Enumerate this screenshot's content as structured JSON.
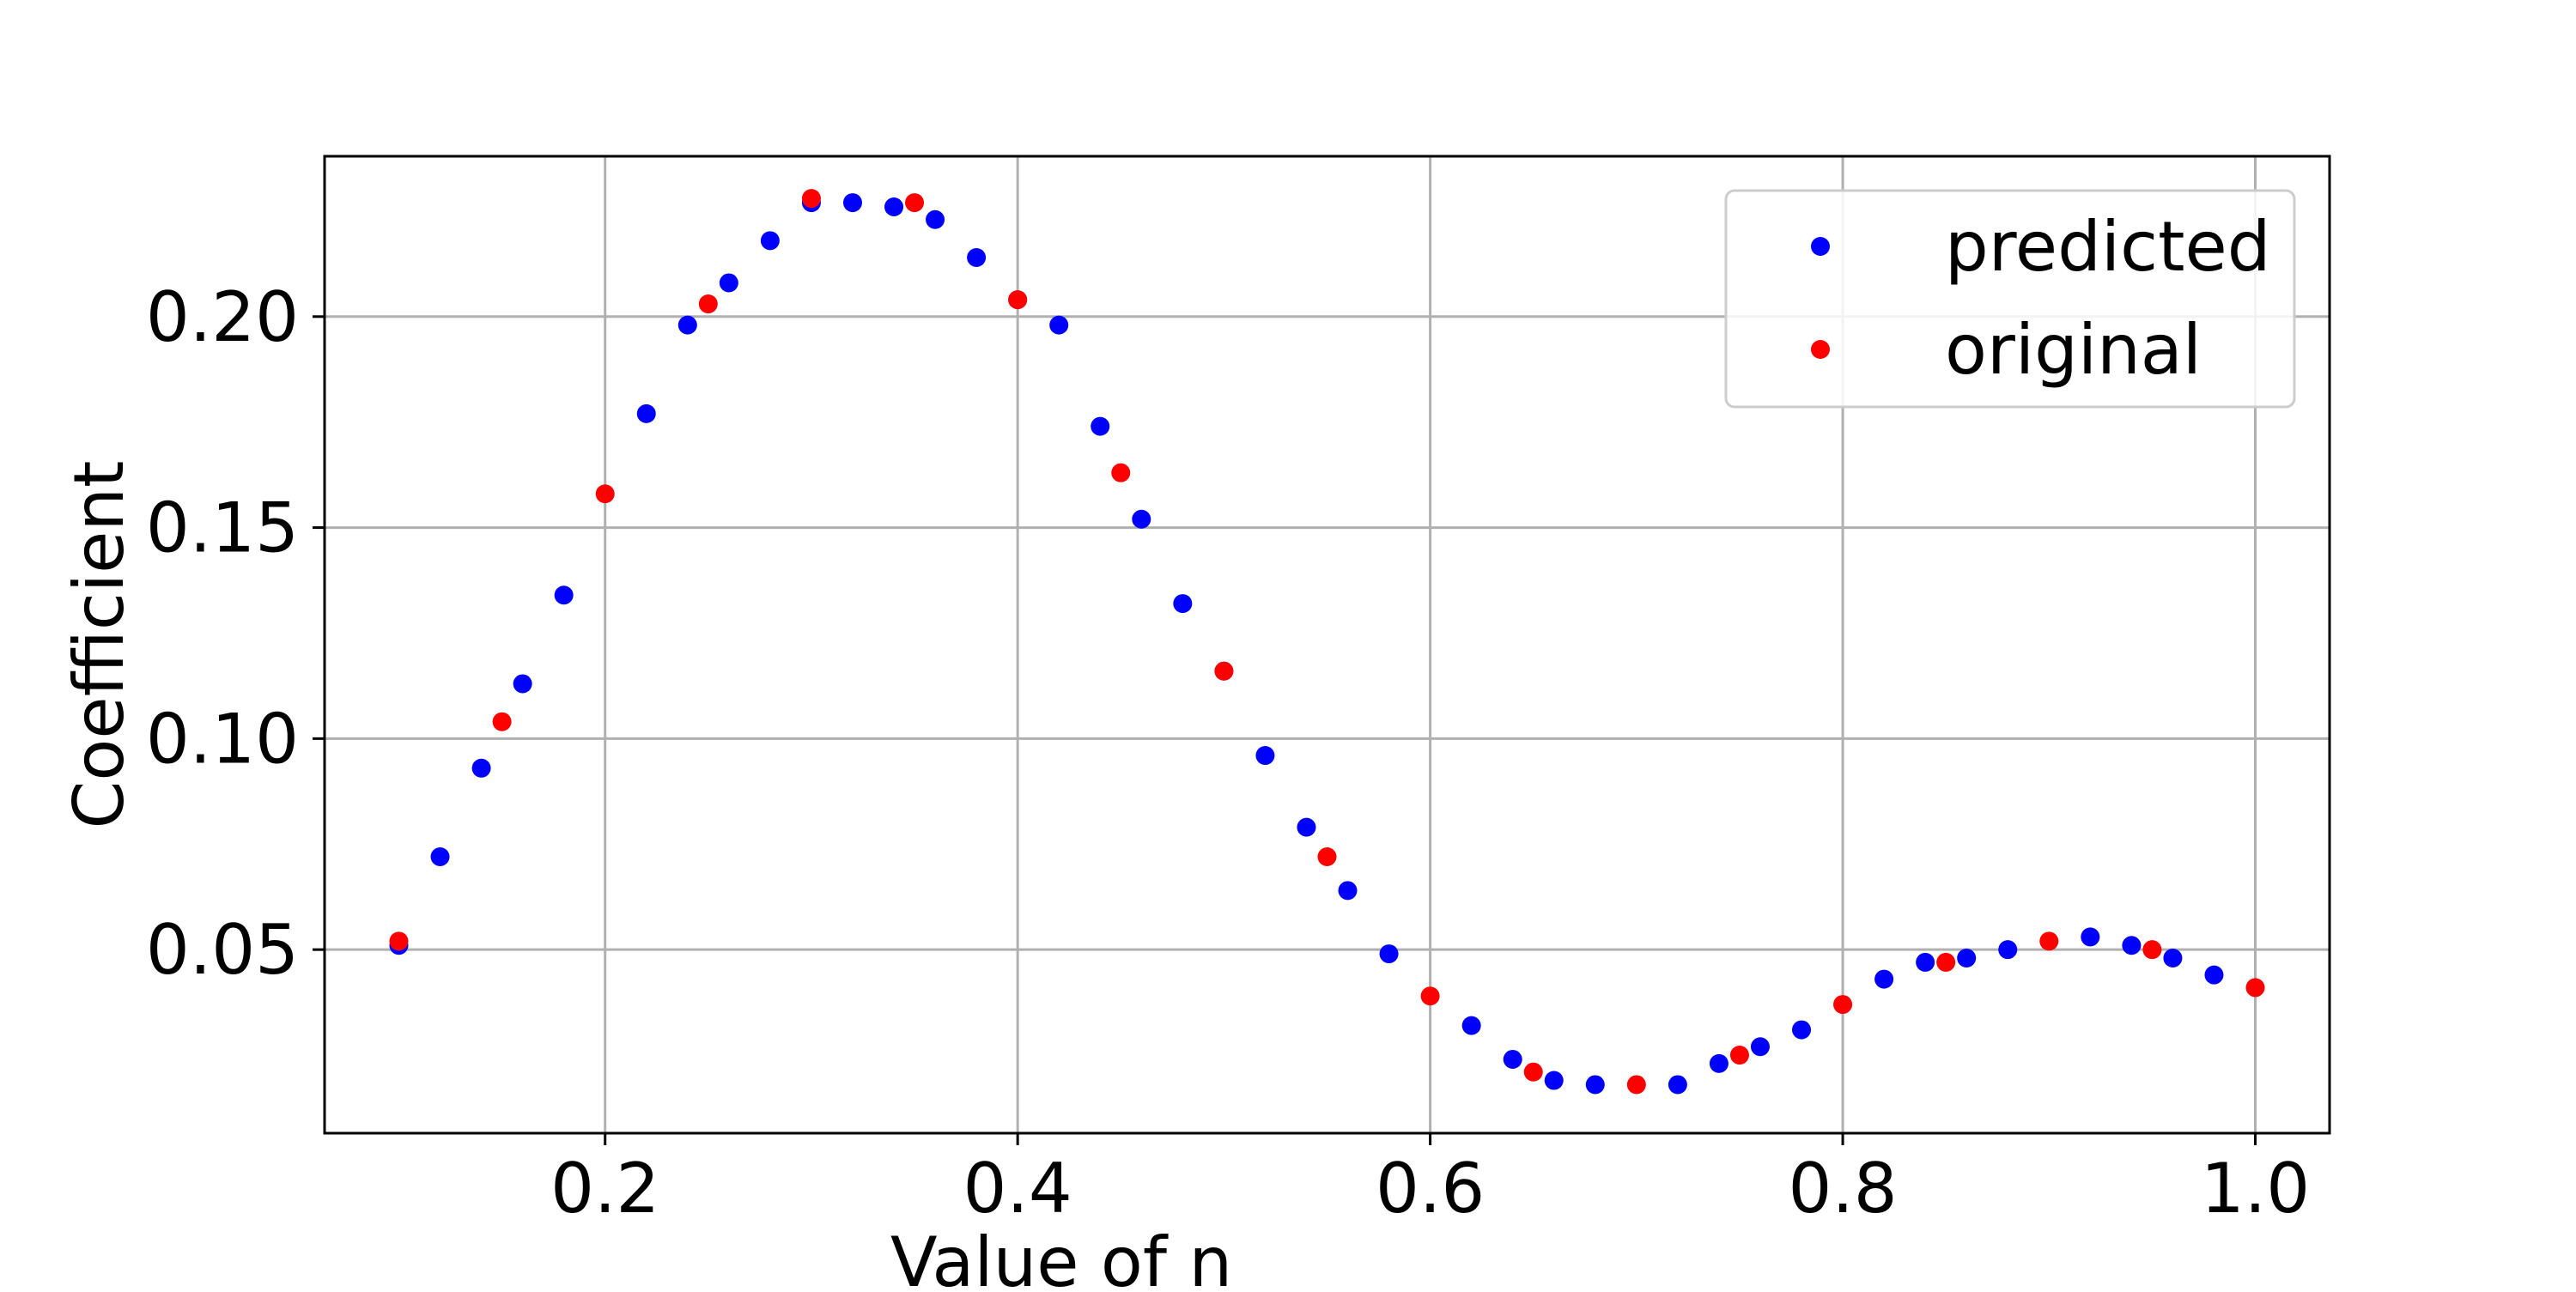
{
  "chart_data": {
    "type": "scatter",
    "title": "",
    "xlabel": "Value of n",
    "ylabel": "Coefficient",
    "xlim": [
      0.064,
      1.036
    ],
    "ylim": [
      0.0065,
      0.238
    ],
    "xticks": [
      0.2,
      0.4,
      0.6,
      0.8,
      1.0
    ],
    "xtick_labels": [
      "0.2",
      "0.4",
      "0.6",
      "0.8",
      "1.0"
    ],
    "yticks": [
      0.05,
      0.1,
      0.15,
      0.2
    ],
    "ytick_labels": [
      "0.05",
      "0.10",
      "0.15",
      "0.20"
    ],
    "grid": true,
    "legend_position": "top-right",
    "series": [
      {
        "name": "predicted",
        "color": "#0000ff",
        "points": [
          [
            0.1,
            0.051
          ],
          [
            0.12,
            0.072
          ],
          [
            0.14,
            0.093
          ],
          [
            0.16,
            0.113
          ],
          [
            0.18,
            0.134
          ],
          [
            0.22,
            0.177
          ],
          [
            0.24,
            0.198
          ],
          [
            0.26,
            0.208
          ],
          [
            0.28,
            0.218
          ],
          [
            0.3,
            0.227
          ],
          [
            0.32,
            0.227
          ],
          [
            0.34,
            0.226
          ],
          [
            0.36,
            0.223
          ],
          [
            0.38,
            0.214
          ],
          [
            0.4,
            0.204
          ],
          [
            0.42,
            0.198
          ],
          [
            0.44,
            0.174
          ],
          [
            0.46,
            0.152
          ],
          [
            0.48,
            0.132
          ],
          [
            0.5,
            0.116
          ],
          [
            0.52,
            0.096
          ],
          [
            0.54,
            0.079
          ],
          [
            0.56,
            0.064
          ],
          [
            0.58,
            0.049
          ],
          [
            0.62,
            0.032
          ],
          [
            0.64,
            0.024
          ],
          [
            0.66,
            0.019
          ],
          [
            0.68,
            0.018
          ],
          [
            0.72,
            0.018
          ],
          [
            0.74,
            0.023
          ],
          [
            0.76,
            0.027
          ],
          [
            0.78,
            0.031
          ],
          [
            0.82,
            0.043
          ],
          [
            0.84,
            0.047
          ],
          [
            0.86,
            0.048
          ],
          [
            0.88,
            0.05
          ],
          [
            0.92,
            0.053
          ],
          [
            0.94,
            0.051
          ],
          [
            0.96,
            0.048
          ],
          [
            0.98,
            0.044
          ]
        ]
      },
      {
        "name": "original",
        "color": "#ff0000",
        "points": [
          [
            0.1,
            0.052
          ],
          [
            0.15,
            0.104
          ],
          [
            0.2,
            0.158
          ],
          [
            0.25,
            0.203
          ],
          [
            0.3,
            0.228
          ],
          [
            0.35,
            0.227
          ],
          [
            0.4,
            0.204
          ],
          [
            0.45,
            0.163
          ],
          [
            0.5,
            0.116
          ],
          [
            0.55,
            0.072
          ],
          [
            0.6,
            0.039
          ],
          [
            0.65,
            0.021
          ],
          [
            0.7,
            0.018
          ],
          [
            0.75,
            0.025
          ],
          [
            0.8,
            0.037
          ],
          [
            0.85,
            0.047
          ],
          [
            0.9,
            0.052
          ],
          [
            0.95,
            0.05
          ],
          [
            1.0,
            0.041
          ]
        ]
      }
    ]
  }
}
